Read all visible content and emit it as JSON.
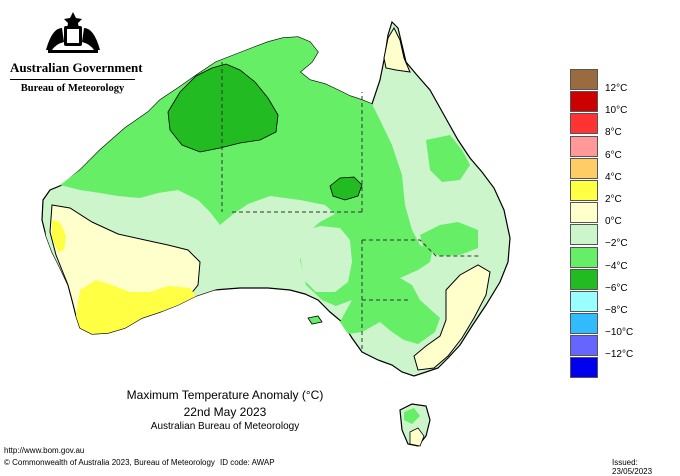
{
  "header": {
    "agency": "Australian Government",
    "bureau": "Bureau of Meteorology"
  },
  "map": {
    "title": "Maximum Temperature Anomaly",
    "unit": "(°C)",
    "date": "22nd May 2023",
    "source": "Australian Bureau of Meteorology"
  },
  "legend": {
    "items": [
      {
        "label": "12°C",
        "color": "#9a6b3f"
      },
      {
        "label": "10°C",
        "color": "#cc0000"
      },
      {
        "label": "8°C",
        "color": "#ff3333"
      },
      {
        "label": "6°C",
        "color": "#ff9999"
      },
      {
        "label": "4°C",
        "color": "#ffcc66"
      },
      {
        "label": "2°C",
        "color": "#ffff44"
      },
      {
        "label": "0°C",
        "color": "#ffffcc"
      },
      {
        "label": "−2°C",
        "color": "#ccf5cc"
      },
      {
        "label": "−4°C",
        "color": "#66ee66"
      },
      {
        "label": "−6°C",
        "color": "#22bb22"
      },
      {
        "label": "−8°C",
        "color": "#99ffff"
      },
      {
        "label": "−10°C",
        "color": "#33bbff"
      },
      {
        "label": "−12°C",
        "color": "#6666ff"
      },
      {
        "label": "",
        "color": "#0000ee"
      }
    ]
  },
  "footer": {
    "url": "http://www.bom.gov.au",
    "copyright": "© Commonwealth of Australia 2023, Bureau of Meteorology",
    "id_code": "ID code: AWAP",
    "issued": "Issued: 23/05/2023"
  }
}
